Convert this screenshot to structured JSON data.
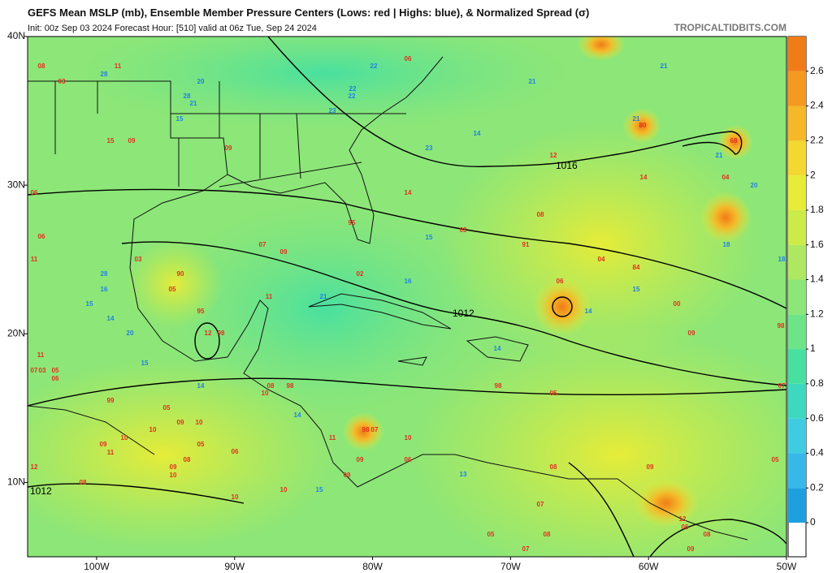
{
  "title": "GEFS Mean MSLP (mb), Ensemble Member Pressure Centers (Lows: red | Highs: blue), & Normalized Spread (σ)",
  "subtitle": "Init: 00z Sep 03 2024   Forecast Hour: [510]   valid at 06z Tue, Sep 24 2024",
  "source": "TROPICALTIDBITS.COM",
  "map": {
    "xlim": [
      -105,
      -50
    ],
    "ylim": [
      5,
      40
    ],
    "xticks": [
      {
        "value": -100,
        "label": "100W"
      },
      {
        "value": -90,
        "label": "90W"
      },
      {
        "value": -80,
        "label": "80W"
      },
      {
        "value": -70,
        "label": "70W"
      },
      {
        "value": -60,
        "label": "60W"
      },
      {
        "value": -50,
        "label": "50W"
      }
    ],
    "yticks": [
      {
        "value": 40,
        "label": "40N"
      },
      {
        "value": 30,
        "label": "30N"
      },
      {
        "value": 20,
        "label": "20N"
      },
      {
        "value": 10,
        "label": "10N"
      }
    ],
    "contour_labels": [
      "1016",
      "1012",
      "1012"
    ],
    "low_color": "#e03020",
    "high_color": "#2080e0",
    "lows": [
      "08",
      "11",
      "03",
      "15",
      "09",
      "09",
      "12",
      "14",
      "04",
      "68",
      "80",
      "06",
      "14",
      "08",
      "03",
      "91",
      "04",
      "84",
      "06",
      "11",
      "07",
      "09",
      "03",
      "90",
      "05",
      "95",
      "11",
      "12",
      "98",
      "02",
      "06",
      "00",
      "09",
      "98",
      "11",
      "07",
      "03",
      "05",
      "06",
      "99",
      "05",
      "10",
      "09",
      "10",
      "05",
      "06",
      "09",
      "11",
      "10",
      "08",
      "09",
      "10",
      "12",
      "08",
      "10",
      "10",
      "98",
      "07",
      "11",
      "09",
      "09",
      "06",
      "10",
      "05",
      "98",
      "07",
      "09",
      "05",
      "08",
      "07",
      "05",
      "07",
      "08",
      "12",
      "06",
      "08",
      "09",
      "10",
      "08",
      "98",
      "95",
      "06"
    ],
    "highs": [
      "28",
      "20",
      "28",
      "21",
      "15",
      "22",
      "22",
      "22",
      "23",
      "23",
      "14",
      "21",
      "21",
      "21",
      "21",
      "20",
      "18",
      "18",
      "15",
      "14",
      "15",
      "16",
      "15",
      "28",
      "16",
      "14",
      "20",
      "15",
      "14",
      "14",
      "13",
      "14",
      "21",
      "15"
    ]
  },
  "colorbar": {
    "lim": [
      0,
      2.8
    ],
    "ticks": [
      0,
      0.2,
      0.4,
      0.6,
      0.8,
      1,
      1.2,
      1.4,
      1.6,
      1.8,
      2,
      2.2,
      2.4,
      2.6
    ],
    "colors": [
      "#1ea0e0",
      "#38b8e8",
      "#40cce0",
      "#3ed8c0",
      "#48e0a0",
      "#6ee488",
      "#8ce678",
      "#aee860",
      "#cceb48",
      "#e6ec38",
      "#f2d830",
      "#f4b828",
      "#f49a20",
      "#f07c18"
    ]
  }
}
